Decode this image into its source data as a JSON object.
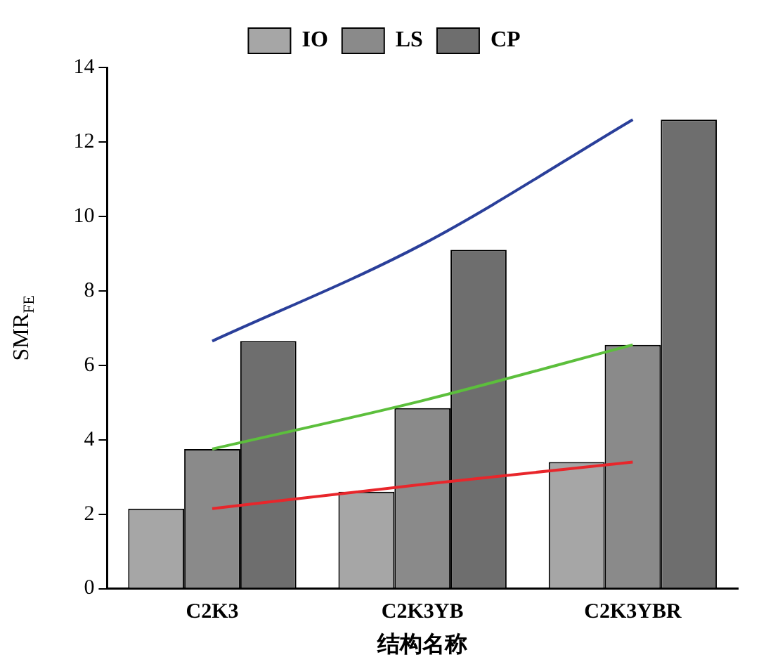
{
  "chart_data": {
    "type": "bar",
    "xlabel": "结构名称",
    "ylabel": "SMR$_{FE}$",
    "categories": [
      "C2K3",
      "C2K3YB",
      "C2K3YBR"
    ],
    "series": [
      {
        "name": "IO",
        "color": "#a6a6a6",
        "values": [
          2.15,
          2.6,
          3.4
        ]
      },
      {
        "name": "LS",
        "color": "#8a8a8a",
        "values": [
          3.75,
          4.85,
          6.55
        ]
      },
      {
        "name": "CP",
        "color": "#6e6e6e",
        "values": [
          6.65,
          9.1,
          12.6
        ]
      },
      {
        "type": "line",
        "color": "#e8262b",
        "values": [
          2.15,
          2.8,
          3.4
        ]
      },
      {
        "type": "line",
        "color": "#5cbf3c",
        "values": [
          3.75,
          5.05,
          6.55
        ]
      },
      {
        "type": "line",
        "color": "#2a3f9a",
        "values": [
          6.65,
          9.25,
          12.6
        ]
      }
    ],
    "ylim": [
      0,
      14
    ],
    "yticks": [
      0,
      2,
      4,
      6,
      8,
      10,
      12,
      14
    ],
    "grid": false,
    "legend": "top",
    "marker": "none"
  }
}
